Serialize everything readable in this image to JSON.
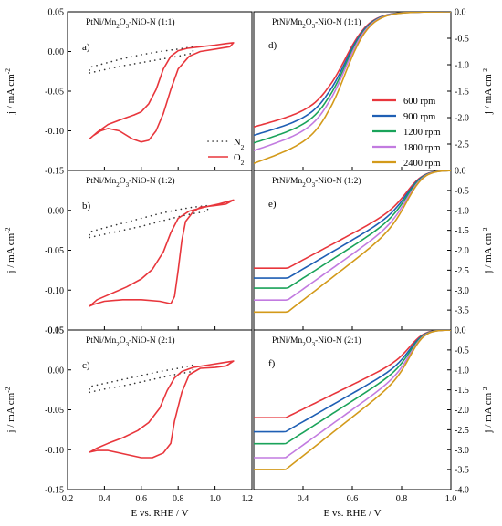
{
  "chart_data": {
    "type": "line",
    "x_axis_label": "E vs. RHE / V",
    "y_axis_label": "j / mA cm",
    "y_axis_label_sup": "-2",
    "legend_cv": [
      {
        "name": "N",
        "sub": "2",
        "color": "#333333"
      },
      {
        "name": "O",
        "sub": "2",
        "color": "#e8363c"
      }
    ],
    "legend_lsv": [
      {
        "name": "600 rpm",
        "color": "#e8363c"
      },
      {
        "name": "900 rpm",
        "color": "#1f5fb4"
      },
      {
        "name": "1200 rpm",
        "color": "#1aa35a"
      },
      {
        "name": "1800 rpm",
        "color": "#c27be0"
      },
      {
        "name": "2400 rpm",
        "color": "#d39a1a"
      }
    ],
    "colors": {
      "o2": "#e8363c",
      "n2": "#333333",
      "rpm600": "#e8363c",
      "rpm900": "#1f5fb4",
      "rpm1200": "#1aa35a",
      "rpm1800": "#c27be0",
      "rpm2400": "#d39a1a"
    },
    "cv_xlim": [
      0.2,
      1.2
    ],
    "cv_x_ticks": [
      "0.2",
      "0.4",
      "0.6",
      "0.8",
      "1.0",
      "1.2"
    ],
    "lsv_xlim": [
      0.2,
      1.0
    ],
    "lsv_x_ticks": [
      "0.4",
      "0.6",
      "0.8",
      "1.0"
    ],
    "panels": [
      {
        "letter": "a)",
        "title_parts": [
          "PtNi/Mn",
          "2",
          "O",
          "3",
          "-NiO-N (1:1)"
        ],
        "ylim": [
          -0.15,
          0.05
        ],
        "y_ticks": [
          0.05,
          0.0,
          -0.05,
          -0.1,
          -0.15
        ],
        "y_tick_labels": [
          "0.05",
          "0.00",
          "-0.05",
          "-0.10",
          "-0.15"
        ],
        "o2_cycle": [
          [
            0.32,
            -0.11
          ],
          [
            0.36,
            -0.102
          ],
          [
            0.42,
            -0.092
          ],
          [
            0.5,
            -0.085
          ],
          [
            0.56,
            -0.08
          ],
          [
            0.6,
            -0.076
          ],
          [
            0.64,
            -0.066
          ],
          [
            0.68,
            -0.048
          ],
          [
            0.72,
            -0.022
          ],
          [
            0.76,
            -0.006
          ],
          [
            0.8,
            0.001
          ],
          [
            0.85,
            0.004
          ],
          [
            0.92,
            0.006
          ],
          [
            1.0,
            0.008
          ],
          [
            1.06,
            0.01
          ],
          [
            1.1,
            0.011
          ],
          [
            1.08,
            0.006
          ],
          [
            1.0,
            0.003
          ],
          [
            0.92,
            0.0
          ],
          [
            0.86,
            -0.006
          ],
          [
            0.8,
            -0.022
          ],
          [
            0.76,
            -0.048
          ],
          [
            0.72,
            -0.078
          ],
          [
            0.68,
            -0.1
          ],
          [
            0.64,
            -0.112
          ],
          [
            0.6,
            -0.114
          ],
          [
            0.55,
            -0.11
          ],
          [
            0.48,
            -0.1
          ],
          [
            0.42,
            -0.097
          ],
          [
            0.38,
            -0.1
          ],
          [
            0.34,
            -0.106
          ],
          [
            0.32,
            -0.11
          ]
        ],
        "n2_cycle": [
          [
            0.32,
            -0.027
          ],
          [
            0.4,
            -0.023
          ],
          [
            0.5,
            -0.018
          ],
          [
            0.6,
            -0.014
          ],
          [
            0.7,
            -0.01
          ],
          [
            0.8,
            -0.006
          ],
          [
            0.88,
            -0.002
          ],
          [
            0.88,
            0.006
          ],
          [
            0.8,
            0.003
          ],
          [
            0.7,
            0.0
          ],
          [
            0.6,
            -0.004
          ],
          [
            0.5,
            -0.009
          ],
          [
            0.4,
            -0.015
          ],
          [
            0.32,
            -0.02
          ]
        ],
        "legend": "cv"
      },
      {
        "letter": "d)",
        "title_parts": [
          "PtNi/Mn",
          "2",
          "O",
          "3",
          "-NiO-N (1:1)"
        ],
        "ylim": [
          -3.0,
          0.0
        ],
        "y_ticks": [
          0.0,
          -0.5,
          -1.0,
          -1.5,
          -2.0,
          -2.5,
          -3.0
        ],
        "y_tick_labels": [
          "0.0",
          "-0.5",
          "-1.0",
          "-1.5",
          "-2.0",
          "-2.5",
          ""
        ],
        "series": [
          {
            "name": "600 rpm",
            "limit": -1.8
          },
          {
            "name": "900 rpm",
            "limit": -1.93
          },
          {
            "name": "1200 rpm",
            "limit": -2.05
          },
          {
            "name": "1800 rpm",
            "limit": -2.17
          },
          {
            "name": "2400 rpm",
            "limit": -2.37
          }
        ],
        "shape": "sigmoid",
        "legend": "lsv"
      },
      {
        "letter": "b)",
        "title_parts": [
          "PtNi/Mn",
          "2",
          "O",
          "3",
          "-NiO-N (1:2)"
        ],
        "ylim": [
          -0.15,
          0.05
        ],
        "y_ticks": [
          0.0,
          -0.05,
          -0.1,
          -0.15
        ],
        "y_tick_labels": [
          "0.00",
          "-0.05",
          "-0.10",
          "-0.15"
        ],
        "o2_cycle": [
          [
            0.32,
            -0.12
          ],
          [
            0.36,
            -0.112
          ],
          [
            0.44,
            -0.104
          ],
          [
            0.52,
            -0.096
          ],
          [
            0.6,
            -0.086
          ],
          [
            0.66,
            -0.074
          ],
          [
            0.72,
            -0.052
          ],
          [
            0.76,
            -0.028
          ],
          [
            0.8,
            -0.01
          ],
          [
            0.86,
            -0.001
          ],
          [
            0.94,
            0.004
          ],
          [
            1.02,
            0.008
          ],
          [
            1.1,
            0.013
          ],
          [
            1.06,
            0.008
          ],
          [
            1.0,
            0.006
          ],
          [
            0.92,
            0.004
          ],
          [
            0.88,
            -0.002
          ],
          [
            0.84,
            -0.014
          ],
          [
            0.82,
            -0.038
          ],
          [
            0.8,
            -0.075
          ],
          [
            0.78,
            -0.108
          ],
          [
            0.76,
            -0.117
          ],
          [
            0.7,
            -0.114
          ],
          [
            0.6,
            -0.112
          ],
          [
            0.5,
            -0.112
          ],
          [
            0.4,
            -0.114
          ],
          [
            0.34,
            -0.118
          ],
          [
            0.32,
            -0.12
          ]
        ],
        "n2_cycle": [
          [
            0.32,
            -0.034
          ],
          [
            0.4,
            -0.03
          ],
          [
            0.5,
            -0.025
          ],
          [
            0.6,
            -0.02
          ],
          [
            0.7,
            -0.014
          ],
          [
            0.8,
            -0.008
          ],
          [
            0.88,
            -0.004
          ],
          [
            0.96,
            -0.001
          ],
          [
            0.96,
            0.006
          ],
          [
            0.88,
            0.004
          ],
          [
            0.8,
            0.001
          ],
          [
            0.7,
            -0.004
          ],
          [
            0.6,
            -0.01
          ],
          [
            0.5,
            -0.016
          ],
          [
            0.4,
            -0.022
          ],
          [
            0.32,
            -0.027
          ]
        ],
        "legend": "none"
      },
      {
        "letter": "e)",
        "title_parts": [
          "PtNi/Mn",
          "2",
          "O",
          "3",
          "-NiO-N (1:2)"
        ],
        "ylim": [
          -4.0,
          0.0
        ],
        "y_ticks": [
          0.0,
          -0.5,
          -1.0,
          -1.5,
          -2.0,
          -2.5,
          -3.0,
          -3.5,
          -4.0
        ],
        "y_tick_labels": [
          "0.0",
          "-0.5",
          "-1.0",
          "-1.5",
          "-2.0",
          "-2.5",
          "-3.0",
          "-3.5",
          ""
        ],
        "series": [
          {
            "name": "600 rpm",
            "limit": -2.45,
            "start": -2.45
          },
          {
            "name": "900 rpm",
            "limit": -2.7,
            "start": -2.7
          },
          {
            "name": "1200 rpm",
            "limit": -2.95,
            "start": -2.95
          },
          {
            "name": "1800 rpm",
            "limit": -3.25,
            "start": -3.25
          },
          {
            "name": "2400 rpm",
            "limit": -3.55,
            "start": -3.55
          }
        ],
        "shape": "mixed",
        "legend": "none"
      },
      {
        "letter": "c)",
        "title_parts": [
          "PtNi/Mn",
          "2",
          "O",
          "3",
          "-NiO-N (2:1)"
        ],
        "ylim": [
          -0.15,
          0.05
        ],
        "y_ticks": [
          0.05,
          0.0,
          -0.05,
          -0.1,
          -0.15
        ],
        "y_tick_labels": [
          "0.05",
          "0.00",
          "-0.05",
          "-0.10",
          "-0.15"
        ],
        "o2_cycle": [
          [
            0.32,
            -0.103
          ],
          [
            0.36,
            -0.098
          ],
          [
            0.42,
            -0.092
          ],
          [
            0.5,
            -0.085
          ],
          [
            0.58,
            -0.076
          ],
          [
            0.64,
            -0.066
          ],
          [
            0.7,
            -0.048
          ],
          [
            0.74,
            -0.026
          ],
          [
            0.78,
            -0.01
          ],
          [
            0.82,
            -0.002
          ],
          [
            0.88,
            0.003
          ],
          [
            0.96,
            0.006
          ],
          [
            1.04,
            0.009
          ],
          [
            1.1,
            0.011
          ],
          [
            1.06,
            0.005
          ],
          [
            1.0,
            0.003
          ],
          [
            0.92,
            0.002
          ],
          [
            0.86,
            -0.006
          ],
          [
            0.82,
            -0.028
          ],
          [
            0.78,
            -0.064
          ],
          [
            0.76,
            -0.092
          ],
          [
            0.72,
            -0.104
          ],
          [
            0.66,
            -0.11
          ],
          [
            0.6,
            -0.11
          ],
          [
            0.5,
            -0.105
          ],
          [
            0.42,
            -0.101
          ],
          [
            0.36,
            -0.101
          ],
          [
            0.32,
            -0.103
          ]
        ],
        "n2_cycle": [
          [
            0.32,
            -0.028
          ],
          [
            0.4,
            -0.024
          ],
          [
            0.5,
            -0.02
          ],
          [
            0.6,
            -0.015
          ],
          [
            0.7,
            -0.01
          ],
          [
            0.8,
            -0.005
          ],
          [
            0.88,
            -0.002
          ],
          [
            0.88,
            0.006
          ],
          [
            0.8,
            0.002
          ],
          [
            0.7,
            -0.002
          ],
          [
            0.6,
            -0.007
          ],
          [
            0.5,
            -0.012
          ],
          [
            0.4,
            -0.017
          ],
          [
            0.32,
            -0.021
          ]
        ],
        "legend": "none"
      },
      {
        "letter": "f)",
        "title_parts": [
          "PtNi/Mn",
          "2",
          "O",
          "3",
          "-NiO-N (2:1)"
        ],
        "ylim": [
          -4.0,
          0.0
        ],
        "y_ticks": [
          0.0,
          -0.5,
          -1.0,
          -1.5,
          -2.0,
          -2.5,
          -3.0,
          -3.5,
          -4.0
        ],
        "y_tick_labels": [
          "0.0",
          "-0.5",
          "-1.0",
          "-1.5",
          "-2.0",
          "-2.5",
          "-3.0",
          "-3.5",
          "-4.0"
        ],
        "series": [
          {
            "name": "600 rpm",
            "limit": -2.2,
            "start": -2.2
          },
          {
            "name": "900 rpm",
            "limit": -2.55,
            "start": -2.55
          },
          {
            "name": "1200 rpm",
            "limit": -2.85,
            "start": -2.85
          },
          {
            "name": "1800 rpm",
            "limit": -3.2,
            "start": -3.2
          },
          {
            "name": "2400 rpm",
            "limit": -3.5,
            "start": -3.5
          }
        ],
        "shape": "linear",
        "legend": "none"
      }
    ]
  }
}
